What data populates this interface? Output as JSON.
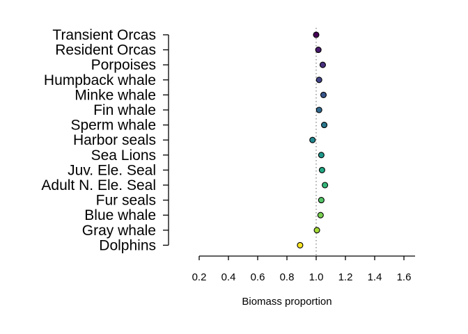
{
  "chart_data": {
    "type": "scatter",
    "title": "",
    "xlabel": "Biomass proportion",
    "ylabel": "",
    "xlim": [
      0.2,
      1.6
    ],
    "x_ticks": [
      0.2,
      0.4,
      0.6,
      0.8,
      1.0,
      1.2,
      1.4,
      1.6
    ],
    "x_tick_labels": [
      "0.2",
      "0.4",
      "0.6",
      "0.8",
      "1.0",
      "1.2",
      "1.4",
      "1.6"
    ],
    "reference_line": 1.0,
    "grid": false,
    "categories": [
      "Transient Orcas",
      "Resident Orcas",
      "Porpoises",
      "Humpback whale",
      "Minke whale",
      "Fin whale",
      "Sperm whale",
      "Harbor seals",
      "Sea Lions",
      "Juv. Ele. Seal",
      "Adult N. Ele. Seal",
      "Fur seals",
      "Blue whale",
      "Gray whale",
      "Dolphins"
    ],
    "values": [
      1.0,
      1.015,
      1.045,
      1.02,
      1.05,
      1.02,
      1.055,
      0.975,
      1.035,
      1.04,
      1.06,
      1.035,
      1.03,
      1.005,
      0.89
    ],
    "colors": [
      "#440154",
      "#481A6C",
      "#472F7D",
      "#414487",
      "#39568C",
      "#31688E",
      "#2A788E",
      "#23888E",
      "#1F988B",
      "#22A884",
      "#35B779",
      "#54C568",
      "#7AD151",
      "#A5DB36",
      "#FDE725"
    ]
  }
}
